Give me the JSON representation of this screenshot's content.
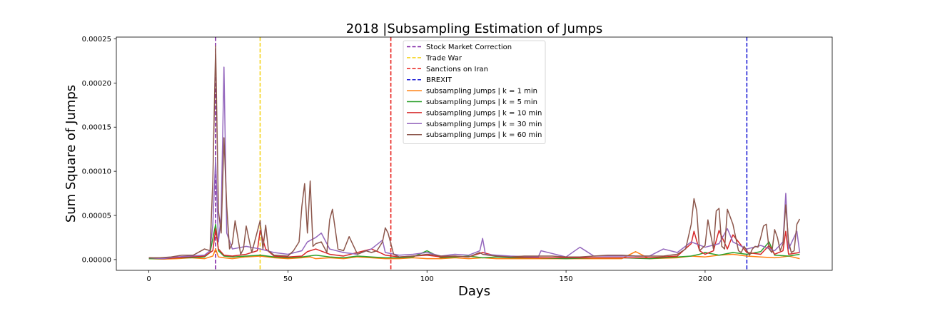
{
  "chart_data": {
    "type": "line",
    "title": "2018 |Subsampling Estimation of Jumps",
    "xlabel": "Days",
    "ylabel": "Sum Square of Jumps",
    "xlim": [
      -11.7,
      245.7
    ],
    "ylim": [
      -1.22e-05,
      0.000252
    ],
    "xticks": [
      0,
      50,
      100,
      150,
      200
    ],
    "xtick_labels": [
      "0",
      "50",
      "100",
      "150",
      "200"
    ],
    "yticks": [
      0,
      5e-05,
      0.0001,
      0.00015,
      0.0002,
      0.00025
    ],
    "ytick_labels": [
      "0.00000",
      "0.00005",
      "0.00010",
      "0.00015",
      "0.00020",
      "0.00025"
    ],
    "grid": false,
    "legend_position": "upper center",
    "events": [
      {
        "name": "Stock Market Correction",
        "x": 24,
        "color": "#7b1fa2"
      },
      {
        "name": "Trade War",
        "x": 40,
        "color": "#f5d31a"
      },
      {
        "name": "Sanctions on Iran",
        "x": 87,
        "color": "#e8201c"
      },
      {
        "name": "BREXIT",
        "x": 215,
        "color": "#1f1fd6"
      }
    ],
    "series_keys": [
      {
        "name": "subsampling Jumps | k = 1 min",
        "color": "#ff7f0e"
      },
      {
        "name": "subsampling Jumps | k = 5 min",
        "color": "#2ca02c"
      },
      {
        "name": "subsampling Jumps | k = 10 min",
        "color": "#d62728"
      },
      {
        "name": "subsampling Jumps | k = 30 min",
        "color": "#9467bd"
      },
      {
        "name": "subsampling Jumps | k = 60 min",
        "color": "#8c564b"
      }
    ],
    "series": [
      {
        "name": "subsampling Jumps | k = 1 min",
        "color": "#ff7f0e",
        "x": [
          0,
          5,
          10,
          15,
          20,
          23,
          24,
          25,
          27,
          30,
          35,
          40,
          45,
          50,
          55,
          58,
          60,
          65,
          70,
          75,
          80,
          85,
          90,
          95,
          100,
          105,
          110,
          115,
          120,
          125,
          130,
          140,
          150,
          160,
          170,
          175,
          180,
          190,
          195,
          200,
          205,
          210,
          215,
          220,
          225,
          228,
          230,
          234
        ],
        "y": [
          1e-06,
          5e-07,
          1e-06,
          2e-06,
          1e-06,
          4e-06,
          1.2e-05,
          3e-06,
          2e-06,
          1e-06,
          3e-06,
          4e-06,
          2e-06,
          1e-06,
          2e-06,
          3e-06,
          1e-06,
          2e-06,
          1e-06,
          3e-06,
          2e-06,
          1e-06,
          1e-06,
          2e-06,
          1e-06,
          1e-06,
          2e-06,
          1e-06,
          2e-06,
          1e-06,
          1e-06,
          1e-06,
          1e-06,
          1e-06,
          1e-06,
          9e-06,
          1e-06,
          2e-06,
          4e-06,
          3e-06,
          5e-06,
          6e-06,
          4e-06,
          3e-06,
          2e-06,
          3e-06,
          4e-06,
          1e-06
        ]
      },
      {
        "name": "subsampling Jumps | k = 5 min",
        "color": "#2ca02c",
        "x": [
          0,
          5,
          10,
          15,
          20,
          22,
          24,
          25,
          27,
          30,
          35,
          40,
          45,
          50,
          55,
          60,
          65,
          70,
          75,
          80,
          85,
          90,
          95,
          100,
          105,
          110,
          115,
          120,
          125,
          130,
          140,
          150,
          160,
          170,
          180,
          190,
          195,
          198,
          200,
          205,
          210,
          215,
          220,
          223,
          225,
          230,
          234
        ],
        "y": [
          1e-06,
          1e-06,
          2e-06,
          2e-06,
          3e-06,
          8e-06,
          4e-05,
          1e-05,
          4e-06,
          3e-06,
          4e-06,
          5e-06,
          3e-06,
          2e-06,
          3e-06,
          5e-06,
          3e-06,
          2e-06,
          4e-06,
          3e-06,
          2e-06,
          2e-06,
          3e-06,
          1e-05,
          2e-06,
          3e-06,
          4e-06,
          2e-06,
          3e-06,
          2e-06,
          2e-06,
          1e-06,
          2e-06,
          2e-06,
          1e-06,
          3e-06,
          4e-06,
          6e-06,
          8e-06,
          5e-06,
          8e-06,
          6e-06,
          9e-06,
          2e-05,
          5e-06,
          4e-06,
          6e-06
        ]
      },
      {
        "name": "subsampling Jumps | k = 10 min",
        "color": "#d62728",
        "x": [
          0,
          5,
          10,
          15,
          20,
          23,
          24,
          25,
          27,
          30,
          35,
          39,
          40,
          42,
          45,
          50,
          55,
          57,
          60,
          65,
          70,
          75,
          80,
          83,
          85,
          90,
          95,
          100,
          105,
          110,
          115,
          120,
          125,
          130,
          140,
          150,
          160,
          170,
          180,
          190,
          195,
          196,
          198,
          200,
          203,
          205,
          208,
          210,
          215,
          220,
          223,
          225,
          228,
          229,
          230,
          234
        ],
        "y": [
          2e-06,
          1e-06,
          2e-06,
          3e-06,
          4e-06,
          1e-05,
          3.5e-05,
          1.2e-05,
          5e-06,
          4e-06,
          6e-06,
          1e-05,
          3.3e-05,
          1.2e-05,
          4e-06,
          3e-06,
          4e-06,
          9e-06,
          1.2e-05,
          6e-06,
          4e-06,
          8e-06,
          1.2e-05,
          8e-06,
          5e-06,
          3e-06,
          4e-06,
          5e-06,
          3e-06,
          4e-06,
          3e-06,
          8e-06,
          4e-06,
          3e-06,
          2e-06,
          2e-06,
          2e-06,
          2e-06,
          2e-06,
          4e-06,
          1.8e-05,
          3.2e-05,
          1e-05,
          6e-06,
          1e-05,
          3.3e-05,
          1.2e-05,
          2.8e-05,
          8e-06,
          6e-06,
          1.6e-05,
          6e-06,
          1e-05,
          3.2e-05,
          6e-06,
          8e-06
        ]
      },
      {
        "name": "subsampling Jumps | k = 30 min",
        "color": "#9467bd",
        "x": [
          0,
          5,
          10,
          15,
          20,
          22,
          23,
          24,
          25,
          26,
          27,
          28,
          30,
          35,
          40,
          45,
          50,
          55,
          57,
          60,
          62,
          65,
          70,
          75,
          80,
          84,
          85,
          90,
          95,
          100,
          105,
          110,
          115,
          119,
          120,
          121,
          125,
          130,
          140,
          141,
          150,
          155,
          160,
          170,
          180,
          185,
          190,
          195,
          200,
          205,
          208,
          210,
          215,
          220,
          225,
          228,
          229,
          230,
          233,
          234
        ],
        "y": [
          2e-06,
          1e-06,
          3e-06,
          4e-06,
          5e-06,
          1e-05,
          4e-05,
          0.000115,
          2e-05,
          5e-05,
          0.000218,
          3e-05,
          1.2e-05,
          1.5e-05,
          1.2e-05,
          8e-06,
          6e-06,
          1e-05,
          2e-05,
          2.5e-05,
          3e-05,
          1.2e-05,
          8e-06,
          6e-06,
          1.2e-05,
          2.2e-05,
          8e-06,
          5e-06,
          6e-06,
          8e-06,
          4e-06,
          6e-06,
          5e-06,
          1e-05,
          2.4e-05,
          6e-06,
          5e-06,
          4e-06,
          3e-06,
          1e-05,
          3e-06,
          1.4e-05,
          4e-06,
          4e-06,
          4e-06,
          1.2e-05,
          8e-06,
          2e-05,
          1.4e-05,
          1.8e-05,
          3.5e-05,
          2e-05,
          1.2e-05,
          1.6e-05,
          1e-05,
          2e-05,
          7.5e-05,
          1.2e-05,
          3.2e-05,
          8e-06
        ]
      },
      {
        "name": "subsampling Jumps | k = 60 min",
        "color": "#8c564b",
        "x": [
          0,
          4,
          8,
          12,
          16,
          20,
          22,
          23,
          24,
          25,
          26,
          27,
          28,
          29,
          30,
          31,
          33,
          34,
          35,
          37,
          38,
          40,
          41,
          42,
          43,
          45,
          50,
          52,
          54,
          55,
          56,
          57,
          58,
          59,
          60,
          62,
          64,
          65,
          66,
          68,
          70,
          72,
          75,
          78,
          80,
          82,
          84,
          85,
          86,
          88,
          90,
          95,
          100,
          103,
          105,
          110,
          115,
          119,
          120,
          122,
          125,
          130,
          135,
          140,
          145,
          150,
          155,
          160,
          165,
          170,
          175,
          180,
          185,
          190,
          193,
          195,
          196,
          197,
          198,
          200,
          201,
          203,
          204,
          205,
          206,
          207,
          208,
          210,
          212,
          213,
          214,
          215,
          216,
          217,
          218,
          219,
          220,
          221,
          222,
          223,
          224,
          225,
          226,
          227,
          228,
          229,
          230,
          231,
          232,
          233,
          234
        ],
        "y": [
          2e-06,
          2e-06,
          3e-06,
          5e-06,
          5e-06,
          1.2e-05,
          1e-05,
          9e-05,
          0.000242,
          5.5e-05,
          3e-05,
          0.000138,
          6e-05,
          1.2e-05,
          1.8e-05,
          4.4e-05,
          6e-06,
          1.2e-05,
          3.8e-05,
          8e-06,
          2e-05,
          4.4e-05,
          1.2e-05,
          3.9e-05,
          1e-05,
          5e-06,
          4e-06,
          1e-05,
          2e-05,
          6e-05,
          8.6e-05,
          3e-05,
          8.9e-05,
          1.5e-05,
          1.8e-05,
          2e-05,
          8e-06,
          4.5e-05,
          5.7e-05,
          1.2e-05,
          1e-05,
          2.6e-05,
          6e-06,
          1e-05,
          8e-06,
          1e-05,
          2e-05,
          3.6e-05,
          3e-05,
          6e-06,
          3e-06,
          4e-06,
          6e-06,
          5e-06,
          4e-06,
          4e-06,
          3e-06,
          8e-06,
          6e-06,
          5e-06,
          4e-06,
          3e-06,
          4e-06,
          4e-06,
          4e-06,
          3e-06,
          3e-06,
          4e-06,
          5e-06,
          5e-06,
          4e-06,
          4e-06,
          4e-06,
          6e-06,
          1.2e-05,
          4e-05,
          6.9e-05,
          5.5e-05,
          1e-05,
          1.6e-05,
          4.5e-05,
          1.2e-05,
          5.5e-05,
          5.8e-05,
          1.5e-05,
          1.2e-05,
          5.7e-05,
          4e-05,
          1e-05,
          8e-06,
          1.5e-05,
          1e-05,
          5e-06,
          1.2e-05,
          1.5e-05,
          1.4e-05,
          2.5e-05,
          3.8e-05,
          4e-05,
          1.2e-05,
          8e-06,
          3.4e-05,
          2.5e-05,
          1e-05,
          1.8e-05,
          6.2e-05,
          2e-05,
          8e-06,
          1e-05,
          4e-05,
          4.6e-05
        ]
      }
    ]
  }
}
